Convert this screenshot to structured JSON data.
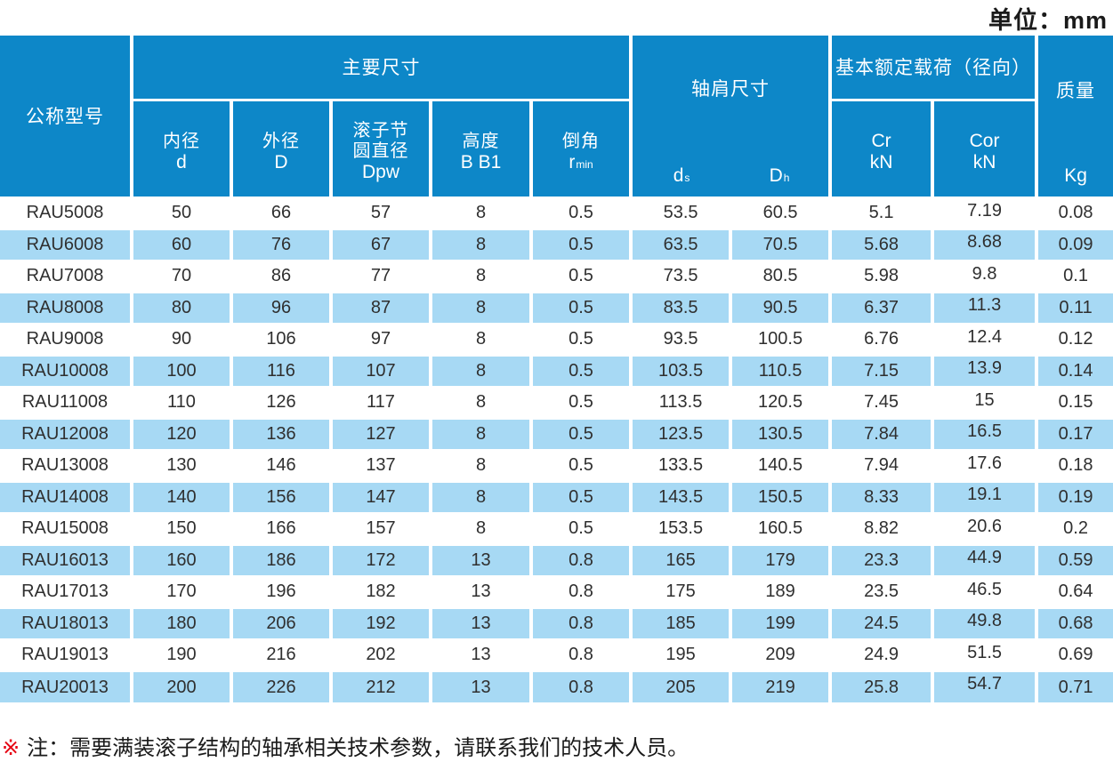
{
  "unit_label": "单位：mm",
  "colors": {
    "header_blue": "#0d87c8",
    "row_blue": "#a7d9f4",
    "note_red": "#e60012",
    "text_dark": "#2f2f2f"
  },
  "table": {
    "header": {
      "model": "公称型号",
      "main_dims": "主要尺寸",
      "shoulder_dims": "轴肩尺寸",
      "load_rating": "基本额定载荷（径向）",
      "mass": "质量",
      "sub": {
        "inner": {
          "name": "内径",
          "sym": "d"
        },
        "outer": {
          "name": "外径",
          "sym": "D"
        },
        "pitch": {
          "name": "滚子节圆直径",
          "sym": "Dpw"
        },
        "height": {
          "name": "高度",
          "sym": "B B1"
        },
        "chamfer": {
          "name": "倒角",
          "sym": "r",
          "sym_sub": "min"
        },
        "ds": {
          "sym": "d",
          "sub": "s"
        },
        "dh": {
          "sym": "D",
          "sub": "h"
        },
        "cr": {
          "name": "Cr",
          "unit": "kN"
        },
        "cor": {
          "name": "Cor",
          "unit": "kN"
        },
        "kg": "Kg"
      }
    },
    "rows": [
      [
        "RAU5008",
        "50",
        "66",
        "57",
        "8",
        "0.5",
        "53.5",
        "60.5",
        "5.1",
        "7.19",
        "0.08"
      ],
      [
        "RAU6008",
        "60",
        "76",
        "67",
        "8",
        "0.5",
        "63.5",
        "70.5",
        "5.68",
        "8.68",
        "0.09"
      ],
      [
        "RAU7008",
        "70",
        "86",
        "77",
        "8",
        "0.5",
        "73.5",
        "80.5",
        "5.98",
        "9.8",
        "0.1"
      ],
      [
        "RAU8008",
        "80",
        "96",
        "87",
        "8",
        "0.5",
        "83.5",
        "90.5",
        "6.37",
        "11.3",
        "0.11"
      ],
      [
        "RAU9008",
        "90",
        "106",
        "97",
        "8",
        "0.5",
        "93.5",
        "100.5",
        "6.76",
        "12.4",
        "0.12"
      ],
      [
        "RAU10008",
        "100",
        "116",
        "107",
        "8",
        "0.5",
        "103.5",
        "110.5",
        "7.15",
        "13.9",
        "0.14"
      ],
      [
        "RAU11008",
        "110",
        "126",
        "117",
        "8",
        "0.5",
        "113.5",
        "120.5",
        "7.45",
        "15",
        "0.15"
      ],
      [
        "RAU12008",
        "120",
        "136",
        "127",
        "8",
        "0.5",
        "123.5",
        "130.5",
        "7.84",
        "16.5",
        "0.17"
      ],
      [
        "RAU13008",
        "130",
        "146",
        "137",
        "8",
        "0.5",
        "133.5",
        "140.5",
        "7.94",
        "17.6",
        "0.18"
      ],
      [
        "RAU14008",
        "140",
        "156",
        "147",
        "8",
        "0.5",
        "143.5",
        "150.5",
        "8.33",
        "19.1",
        "0.19"
      ],
      [
        "RAU15008",
        "150",
        "166",
        "157",
        "8",
        "0.5",
        "153.5",
        "160.5",
        "8.82",
        "20.6",
        "0.2"
      ],
      [
        "RAU16013",
        "160",
        "186",
        "172",
        "13",
        "0.8",
        "165",
        "179",
        "23.3",
        "44.9",
        "0.59"
      ],
      [
        "RAU17013",
        "170",
        "196",
        "182",
        "13",
        "0.8",
        "175",
        "189",
        "23.5",
        "46.5",
        "0.64"
      ],
      [
        "RAU18013",
        "180",
        "206",
        "192",
        "13",
        "0.8",
        "185",
        "199",
        "24.5",
        "49.8",
        "0.68"
      ],
      [
        "RAU19013",
        "190",
        "216",
        "202",
        "13",
        "0.8",
        "195",
        "209",
        "24.9",
        "51.5",
        "0.69"
      ],
      [
        "RAU20013",
        "200",
        "226",
        "212",
        "13",
        "0.8",
        "205",
        "219",
        "25.8",
        "54.7",
        "0.71"
      ]
    ]
  },
  "note": {
    "marker": "※",
    "text": "注：需要满装滚子结构的轴承相关技术参数，请联系我们的技术人员。"
  }
}
